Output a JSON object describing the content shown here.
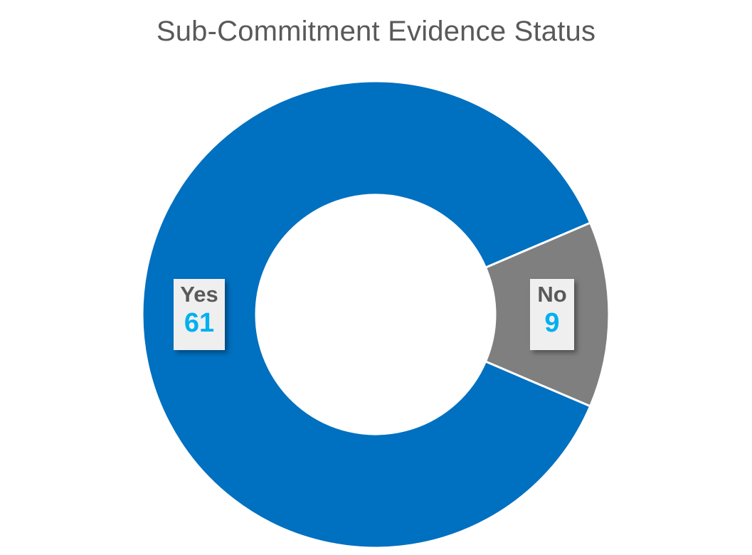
{
  "chart_data": {
    "type": "pie",
    "style": "donut",
    "title": "Sub-Commitment Evidence Status",
    "categories": [
      "Yes",
      "No"
    ],
    "values": [
      61,
      9
    ],
    "colors": [
      "#0070C0",
      "#7F7F7F"
    ],
    "label_category_color": "#595959",
    "label_value_color": "#00B0F0",
    "legend": "none"
  }
}
